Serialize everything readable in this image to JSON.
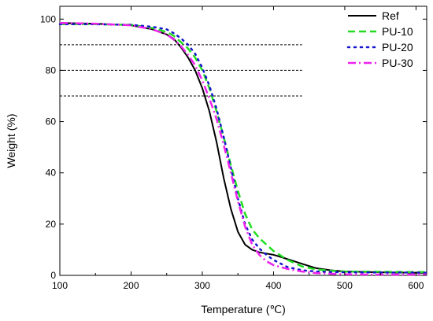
{
  "chart_data": {
    "type": "line",
    "xlabel": "Temperature (℃)",
    "ylabel": "Weight (%)",
    "xlim": [
      100,
      615
    ],
    "ylim": [
      0,
      105
    ],
    "xticks": [
      100,
      200,
      300,
      400,
      500,
      600
    ],
    "yticks": [
      0,
      20,
      40,
      60,
      80,
      100
    ],
    "x_tick_labels": [
      "100",
      "200",
      "300",
      "400",
      "500",
      "600"
    ],
    "y_tick_labels": [
      "0",
      "20",
      "40",
      "60",
      "80",
      "100"
    ],
    "legend_position": "top-right",
    "reference_lines": [
      {
        "y": 90,
        "x_range": [
          100,
          440
        ]
      },
      {
        "y": 80,
        "x_range": [
          100,
          440
        ]
      },
      {
        "y": 70,
        "x_range": [
          100,
          440
        ]
      }
    ],
    "series": [
      {
        "name": "Ref",
        "color": "#000000",
        "style": "solid",
        "x": [
          100,
          150,
          200,
          230,
          250,
          260,
          270,
          280,
          290,
          300,
          310,
          320,
          330,
          340,
          350,
          360,
          370,
          380,
          390,
          400,
          410,
          420,
          440,
          460,
          480,
          500,
          550,
          600,
          615
        ],
        "y": [
          98.5,
          98.2,
          97.6,
          96.0,
          94.0,
          92.3,
          89.0,
          85.0,
          80.0,
          73.0,
          64.0,
          52.0,
          38.0,
          26.0,
          17.0,
          12.0,
          10.0,
          9.0,
          8.5,
          8.0,
          7.2,
          6.3,
          4.5,
          2.8,
          2.0,
          1.5,
          1.2,
          1.0,
          1.0
        ]
      },
      {
        "name": "PU-10",
        "color": "#22dd22",
        "style": "dashed",
        "x": [
          100,
          150,
          200,
          230,
          250,
          260,
          270,
          280,
          290,
          300,
          310,
          320,
          330,
          340,
          350,
          360,
          370,
          380,
          390,
          400,
          420,
          440,
          460,
          480,
          500,
          550,
          600,
          615
        ],
        "y": [
          98.0,
          98.0,
          97.8,
          96.5,
          95.0,
          93.5,
          91.0,
          88.5,
          85.0,
          80.0,
          73.0,
          64.0,
          54.0,
          43.0,
          33.0,
          24.0,
          18.0,
          14.5,
          12.0,
          9.5,
          6.0,
          3.5,
          2.3,
          1.8,
          1.5,
          1.4,
          1.3,
          1.3
        ]
      },
      {
        "name": "PU-20",
        "color": "#1515cc",
        "style": "dotted",
        "x": [
          100,
          150,
          200,
          230,
          250,
          260,
          270,
          280,
          290,
          300,
          310,
          320,
          330,
          340,
          350,
          360,
          370,
          380,
          390,
          400,
          420,
          440,
          460,
          480,
          500,
          550,
          600,
          615
        ],
        "y": [
          98.0,
          98.0,
          97.8,
          97.0,
          96.0,
          94.5,
          92.5,
          90.0,
          86.5,
          81.0,
          74.0,
          65.0,
          54.0,
          42.0,
          30.0,
          20.0,
          14.0,
          10.5,
          8.0,
          6.0,
          3.2,
          2.0,
          1.5,
          1.3,
          1.2,
          1.1,
          1.1,
          1.0
        ]
      },
      {
        "name": "PU-30",
        "color": "#ee22ee",
        "style": "dashdot",
        "x": [
          100,
          150,
          200,
          230,
          250,
          260,
          270,
          280,
          290,
          300,
          310,
          320,
          330,
          340,
          350,
          360,
          370,
          380,
          390,
          400,
          420,
          440,
          460,
          480,
          500,
          550,
          600,
          615
        ],
        "y": [
          98.5,
          98.2,
          97.6,
          96.0,
          94.0,
          92.0,
          89.5,
          86.0,
          82.0,
          76.0,
          69.0,
          61.0,
          51.0,
          40.0,
          29.0,
          19.0,
          12.0,
          8.0,
          5.5,
          4.0,
          2.5,
          1.5,
          0.9,
          0.6,
          0.4,
          0.3,
          0.3,
          0.3
        ]
      }
    ]
  }
}
